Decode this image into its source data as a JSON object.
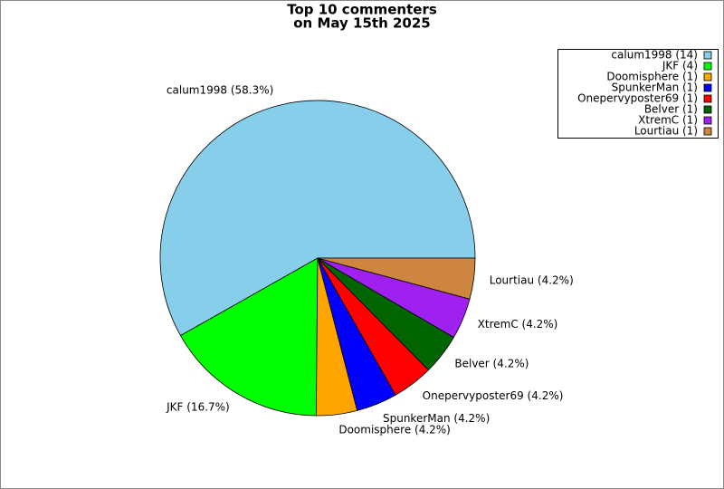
{
  "chart_data": {
    "type": "pie",
    "title": [
      "Top 10 commenters",
      "on May 15th 2025"
    ],
    "categories": [
      "calum1998 (14)",
      "JKF (4)",
      "Doomisphere (1)",
      "SpunkerMan (1)",
      "Onepervyposter69 (1)",
      "Belver (1)",
      "XtremC (1)",
      "Lourtiau (1)"
    ],
    "values": [
      58.3,
      16.7,
      4.2,
      4.2,
      4.2,
      4.2,
      4.2,
      4.2
    ],
    "value_labels": [
      "calum1998 (58.3%)",
      "JKF (16.7%)",
      "Doomisphere (4.2%)",
      "SpunkerMan (4.2%)",
      "Onepervyposter69 (4.2%)",
      "Belver (4.2%)",
      "XtremC (4.2%)",
      "Lourtiau (4.2%)"
    ],
    "colors": [
      "#87ceeb",
      "#00ff00",
      "#ffa500",
      "#0000ff",
      "#ff0000",
      "#006400",
      "#a020f0",
      "#cd853f"
    ],
    "legend": "upper right"
  }
}
